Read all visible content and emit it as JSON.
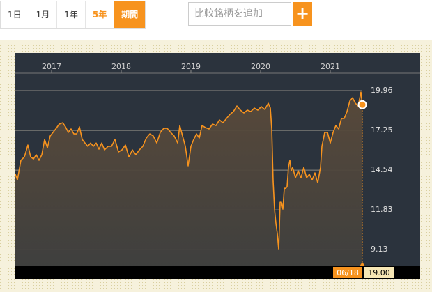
{
  "ui": {
    "ranges": [
      "1日",
      "1月",
      "1年",
      "5年",
      "期間"
    ],
    "search_placeholder": "比較銘柄を追加",
    "add_button": "+"
  },
  "chart_data": {
    "type": "area",
    "x": [
      2016.48,
      2016.51,
      2016.56,
      2016.61,
      2016.66,
      2016.7,
      2016.74,
      2016.78,
      2016.82,
      2016.86,
      2016.9,
      2016.94,
      2016.98,
      2017.02,
      2017.06,
      2017.11,
      2017.16,
      2017.2,
      2017.24,
      2017.28,
      2017.32,
      2017.36,
      2017.4,
      2017.44,
      2017.48,
      2017.52,
      2017.56,
      2017.6,
      2017.64,
      2017.68,
      2017.72,
      2017.76,
      2017.81,
      2017.86,
      2017.91,
      2017.96,
      2018.01,
      2018.06,
      2018.11,
      2018.16,
      2018.21,
      2018.26,
      2018.31,
      2018.36,
      2018.41,
      2018.46,
      2018.51,
      2018.56,
      2018.61,
      2018.66,
      2018.71,
      2018.76,
      2018.81,
      2018.84,
      2018.88,
      2018.92,
      2018.96,
      2019.0,
      2019.04,
      2019.08,
      2019.12,
      2019.16,
      2019.21,
      2019.26,
      2019.31,
      2019.36,
      2019.41,
      2019.46,
      2019.51,
      2019.56,
      2019.61,
      2019.66,
      2019.71,
      2019.76,
      2019.81,
      2019.86,
      2019.91,
      2019.96,
      2020.01,
      2020.06,
      2020.11,
      2020.14,
      2020.16,
      2020.18,
      2020.2,
      2020.22,
      2020.24,
      2020.26,
      2020.28,
      2020.3,
      2020.32,
      2020.34,
      2020.36,
      2020.38,
      2020.4,
      2020.42,
      2020.44,
      2020.46,
      2020.5,
      2020.54,
      2020.58,
      2020.62,
      2020.66,
      2020.7,
      2020.74,
      2020.78,
      2020.82,
      2020.86,
      2020.88,
      2020.92,
      2020.96,
      2021.0,
      2021.04,
      2021.08,
      2021.12,
      2021.16,
      2021.2,
      2021.24,
      2021.28,
      2021.32,
      2021.36,
      2021.4,
      2021.44,
      2021.46
    ],
    "series": [
      {
        "color": "#f7931e",
        "values": [
          14.26,
          13.87,
          15.21,
          15.44,
          16.25,
          15.44,
          15.3,
          15.59,
          15.21,
          15.59,
          16.63,
          16.06,
          16.87,
          17.11,
          17.35,
          17.68,
          17.77,
          17.49,
          17.11,
          17.35,
          17.01,
          17.01,
          17.49,
          16.63,
          16.39,
          16.16,
          16.39,
          16.16,
          16.39,
          15.97,
          16.39,
          15.92,
          16.16,
          16.16,
          16.63,
          15.78,
          15.92,
          16.25,
          15.44,
          15.92,
          15.59,
          15.92,
          16.16,
          16.73,
          17.01,
          16.87,
          16.39,
          17.11,
          17.39,
          17.39,
          17.11,
          16.87,
          16.39,
          17.58,
          16.87,
          16.16,
          14.83,
          16.16,
          16.63,
          17.01,
          16.73,
          17.58,
          17.44,
          17.35,
          17.68,
          17.58,
          17.96,
          17.77,
          18.06,
          18.34,
          18.53,
          18.91,
          18.63,
          18.44,
          18.63,
          18.53,
          18.77,
          18.63,
          18.87,
          18.68,
          19.1,
          18.77,
          17.35,
          13.78,
          11.88,
          10.92,
          10.21,
          9.12,
          12.35,
          12.35,
          11.88,
          13.3,
          13.3,
          13.4,
          14.73,
          15.21,
          14.49,
          14.73,
          14.02,
          14.49,
          14.02,
          14.73,
          14.02,
          14.26,
          13.87,
          14.35,
          13.68,
          14.73,
          16.16,
          17.11,
          17.11,
          16.39,
          17.11,
          17.58,
          17.35,
          18.06,
          18.06,
          18.53,
          19.25,
          19.48,
          19.1,
          18.91,
          19.86,
          19.0
        ]
      }
    ],
    "xlim": [
      2016.48,
      2021.46
    ],
    "xticks": [
      2017,
      2018,
      2019,
      2020,
      2021
    ],
    "ylim": [
      7.99,
      21.15
    ],
    "yticks": [
      19.96,
      17.25,
      14.54,
      11.83,
      9.13
    ],
    "grid": true,
    "last_label": {
      "date": "06/18",
      "value": "19.00"
    }
  }
}
